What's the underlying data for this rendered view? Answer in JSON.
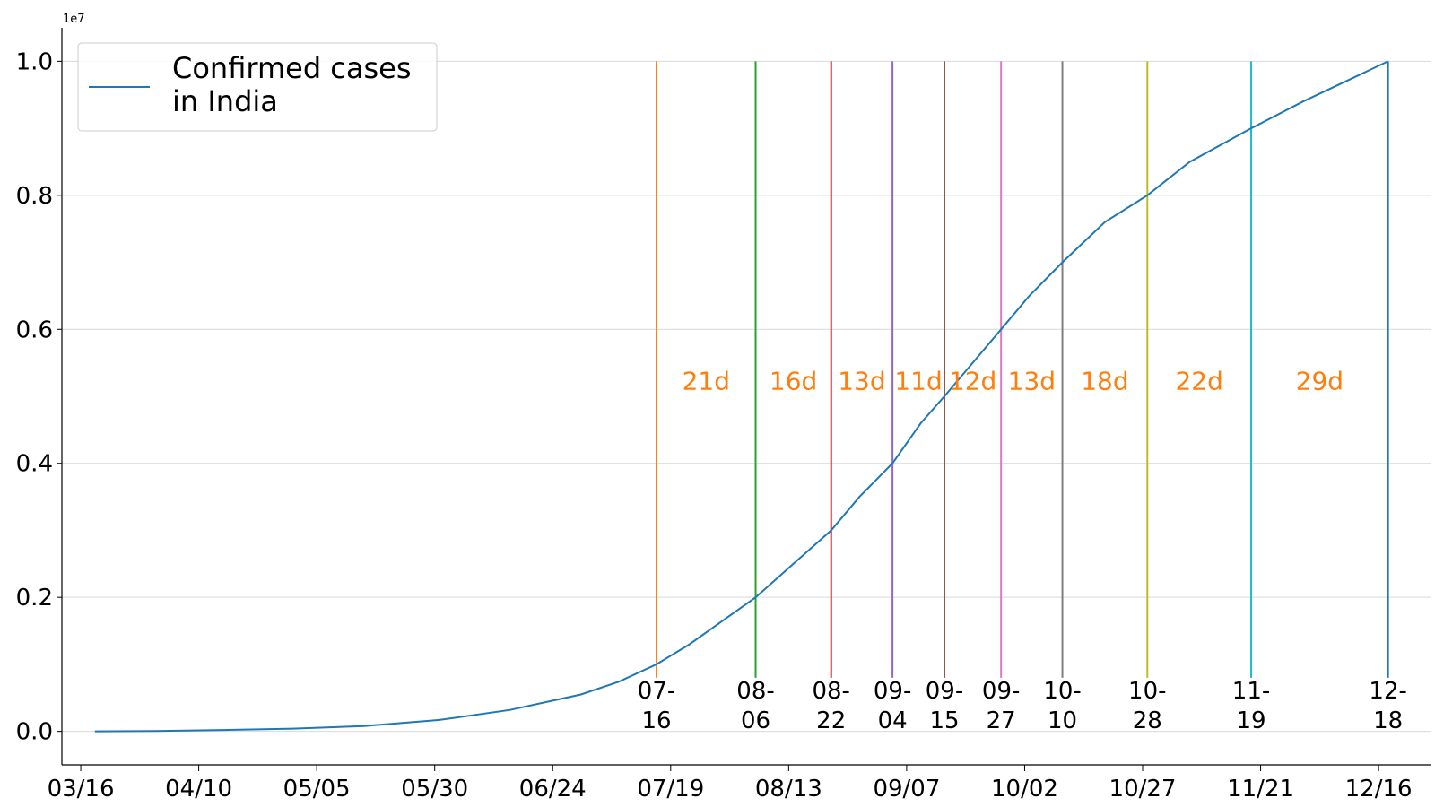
{
  "chart_data": {
    "type": "line",
    "title": "",
    "xlabel": "",
    "ylabel": "",
    "y_scale_label": "1e7",
    "x_tick_labels": [
      "03/16",
      "04/10",
      "05/05",
      "05/30",
      "06/24",
      "07/19",
      "08/13",
      "09/07",
      "10/02",
      "10/27",
      "11/21",
      "12/16"
    ],
    "y_tick_labels": [
      "0.0",
      "0.2",
      "0.4",
      "0.6",
      "0.8",
      "1.0"
    ],
    "x_range": [
      "2020-03-12",
      "2020-12-27"
    ],
    "ylim": [
      -0.05,
      1.05
    ],
    "grid": "horizontal",
    "legend": {
      "location": "upper-left",
      "entries": [
        [
          "Confirmed cases",
          "in India"
        ]
      ]
    },
    "series": [
      {
        "name": "Confirmed cases in India",
        "color": "#1f77b4",
        "x": [
          "2020-03-19",
          "2020-04-01",
          "2020-04-15",
          "2020-04-30",
          "2020-05-15",
          "2020-05-31",
          "2020-06-15",
          "2020-06-30",
          "2020-07-08",
          "2020-07-16",
          "2020-07-23",
          "2020-07-30",
          "2020-08-06",
          "2020-08-14",
          "2020-08-22",
          "2020-08-28",
          "2020-09-04",
          "2020-09-10",
          "2020-09-15",
          "2020-09-21",
          "2020-09-27",
          "2020-10-03",
          "2020-10-10",
          "2020-10-19",
          "2020-10-28",
          "2020-11-06",
          "2020-11-19",
          "2020-11-30",
          "2020-12-09",
          "2020-12-18"
        ],
        "values": [
          0.0,
          0.0005,
          0.002,
          0.004,
          0.008,
          0.017,
          0.032,
          0.055,
          0.074,
          0.1,
          0.13,
          0.165,
          0.2,
          0.25,
          0.3,
          0.35,
          0.4,
          0.46,
          0.5,
          0.55,
          0.6,
          0.65,
          0.7,
          0.76,
          0.8,
          0.85,
          0.9,
          0.94,
          0.97,
          1.0
        ]
      }
    ],
    "vertical_markers": [
      {
        "date": "2020-07-16",
        "label_top": "07-",
        "label_bottom": "16",
        "color": "#ff7f0e"
      },
      {
        "date": "2020-08-06",
        "label_top": "08-",
        "label_bottom": "06",
        "color": "#2ca02c"
      },
      {
        "date": "2020-08-22",
        "label_top": "08-",
        "label_bottom": "22",
        "color": "#d62728"
      },
      {
        "date": "2020-09-04",
        "label_top": "09-",
        "label_bottom": "04",
        "color": "#9467bd"
      },
      {
        "date": "2020-09-15",
        "label_top": "09-",
        "label_bottom": "15",
        "color": "#8c564b"
      },
      {
        "date": "2020-09-27",
        "label_top": "09-",
        "label_bottom": "27",
        "color": "#e377c2"
      },
      {
        "date": "2020-10-10",
        "label_top": "10-",
        "label_bottom": "10",
        "color": "#7f7f7f"
      },
      {
        "date": "2020-10-28",
        "label_top": "10-",
        "label_bottom": "28",
        "color": "#bcbd22"
      },
      {
        "date": "2020-11-19",
        "label_top": "11-",
        "label_bottom": "19",
        "color": "#17becf"
      },
      {
        "date": "2020-12-18",
        "label_top": "12-",
        "label_bottom": "18",
        "color": "#1f77b4"
      }
    ],
    "interval_labels": [
      "21d",
      "16d",
      "13d",
      "11d",
      "12d",
      "13d",
      "18d",
      "22d",
      "29d"
    ],
    "interval_label_value": 0.51,
    "interval_label_color": "#ff7f0e"
  }
}
